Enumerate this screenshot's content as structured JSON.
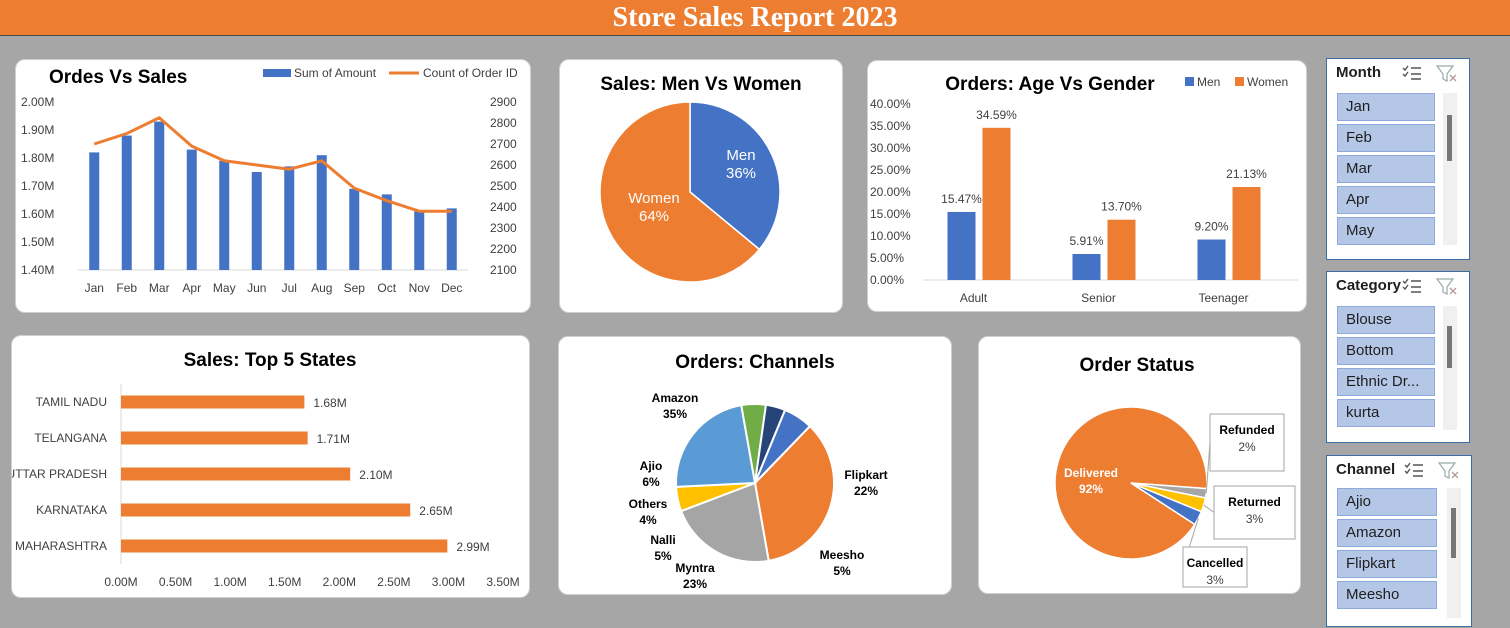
{
  "report": {
    "title": "Store Sales Report 2023"
  },
  "colors": {
    "accent": "#ed7d31",
    "blue": "#4472c4",
    "grey": "#a5a5a5",
    "gold": "#ffc000",
    "lightblue": "#5b9bd5",
    "darkblue": "#264478",
    "green": "#70ad47"
  },
  "chart_data": [
    {
      "id": "orders-vs-sales",
      "type": "bar",
      "title": "Ordes Vs Sales",
      "categories": [
        "Jan",
        "Feb",
        "Mar",
        "Apr",
        "May",
        "Jun",
        "Jul",
        "Aug",
        "Sep",
        "Oct",
        "Nov",
        "Dec"
      ],
      "series": [
        {
          "name": "Sum of Amount",
          "type": "bar",
          "axis": "left",
          "values": [
            1.82,
            1.88,
            1.93,
            1.83,
            1.79,
            1.75,
            1.77,
            1.81,
            1.69,
            1.67,
            1.61,
            1.62
          ]
        },
        {
          "name": "Count of Order ID",
          "type": "line",
          "axis": "right",
          "values": [
            2700,
            2750,
            2825,
            2690,
            2620,
            2600,
            2580,
            2620,
            2490,
            2430,
            2380,
            2380
          ]
        }
      ],
      "y_left": {
        "ticks": [
          "1.40M",
          "1.50M",
          "1.60M",
          "1.70M",
          "1.80M",
          "1.90M",
          "2.00M"
        ],
        "range": [
          1.4,
          2.0
        ]
      },
      "y_right": {
        "ticks": [
          "2100",
          "2200",
          "2300",
          "2400",
          "2500",
          "2600",
          "2700",
          "2800",
          "2900"
        ],
        "range": [
          2100,
          2900
        ]
      },
      "legend": "top-right"
    },
    {
      "id": "sales-men-women",
      "type": "pie",
      "title": "Sales: Men Vs Women",
      "slices": [
        {
          "label": "Men",
          "value": 36,
          "display": "36%"
        },
        {
          "label": "Women",
          "value": 64,
          "display": "64%"
        }
      ]
    },
    {
      "id": "orders-age-gender",
      "type": "bar",
      "title": "Orders: Age Vs Gender",
      "categories": [
        "Adult",
        "Senior",
        "Teenager"
      ],
      "series": [
        {
          "name": "Men",
          "values": [
            15.47,
            5.91,
            9.2
          ],
          "labels": [
            "15.47%",
            "5.91%",
            "9.20%"
          ]
        },
        {
          "name": "Women",
          "values": [
            34.59,
            13.7,
            21.13
          ],
          "labels": [
            "34.59%",
            "13.70%",
            "21.13%"
          ]
        }
      ],
      "y_ticks": [
        "0.00%",
        "5.00%",
        "10.00%",
        "15.00%",
        "20.00%",
        "25.00%",
        "30.00%",
        "35.00%",
        "40.00%"
      ],
      "ylim": [
        0,
        40
      ],
      "legend": "top-right"
    },
    {
      "id": "top-states",
      "type": "bar",
      "orientation": "horizontal",
      "title": "Sales: Top 5 States",
      "categories": [
        "TAMIL NADU",
        "TELANGANA",
        "UTTAR PRADESH",
        "KARNATAKA",
        "MAHARASHTRA"
      ],
      "values": [
        1.68,
        1.71,
        2.1,
        2.65,
        2.99
      ],
      "labels": [
        "1.68M",
        "1.71M",
        "2.10M",
        "2.65M",
        "2.99M"
      ],
      "x_ticks": [
        "0.00M",
        "0.50M",
        "1.00M",
        "1.50M",
        "2.00M",
        "2.50M",
        "3.00M",
        "3.50M"
      ],
      "xlim": [
        0,
        3.5
      ]
    },
    {
      "id": "orders-channels",
      "type": "pie",
      "title": "Orders: Channels",
      "slices": [
        {
          "label": "Amazon",
          "value": 35,
          "display": "35%"
        },
        {
          "label": "Flipkart",
          "value": 22,
          "display": "22%"
        },
        {
          "label": "Meesho",
          "value": 5,
          "display": "5%"
        },
        {
          "label": "Myntra",
          "value": 23,
          "display": "23%"
        },
        {
          "label": "Nalli",
          "value": 5,
          "display": "5%"
        },
        {
          "label": "Others",
          "value": 4,
          "display": "4%"
        },
        {
          "label": "Ajio",
          "value": 6,
          "display": "6%"
        }
      ]
    },
    {
      "id": "order-status",
      "type": "pie",
      "title": "Order Status",
      "slices": [
        {
          "label": "Delivered",
          "value": 92,
          "display": "92%"
        },
        {
          "label": "Refunded",
          "value": 2,
          "display": "2%"
        },
        {
          "label": "Returned",
          "value": 3,
          "display": "3%"
        },
        {
          "label": "Cancelled",
          "value": 3,
          "display": "3%"
        }
      ]
    }
  ],
  "slicers": [
    {
      "title": "Month",
      "items": [
        "Jan",
        "Feb",
        "Mar",
        "Apr",
        "May"
      ]
    },
    {
      "title": "Category",
      "items": [
        "Blouse",
        "Bottom",
        "Ethnic Dr...",
        "kurta"
      ]
    },
    {
      "title": "Channel",
      "items": [
        "Ajio",
        "Amazon",
        "Flipkart",
        "Meesho"
      ]
    }
  ]
}
